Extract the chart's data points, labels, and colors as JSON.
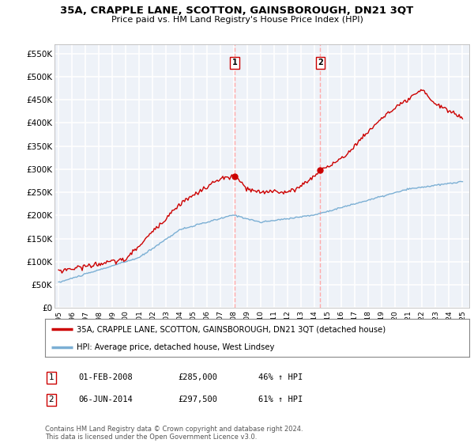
{
  "title": "35A, CRAPPLE LANE, SCOTTON, GAINSBOROUGH, DN21 3QT",
  "subtitle": "Price paid vs. HM Land Registry's House Price Index (HPI)",
  "ylim": [
    0,
    570000
  ],
  "yticks": [
    0,
    50000,
    100000,
    150000,
    200000,
    250000,
    300000,
    350000,
    400000,
    450000,
    500000,
    550000
  ],
  "ytick_labels": [
    "£0",
    "£50K",
    "£100K",
    "£150K",
    "£200K",
    "£250K",
    "£300K",
    "£350K",
    "£400K",
    "£450K",
    "£500K",
    "£550K"
  ],
  "background_color": "#eef2f8",
  "grid_color": "#ffffff",
  "sale1_date_x": 2008.08,
  "sale1_price": 285000,
  "sale2_date_x": 2014.43,
  "sale2_price": 297500,
  "legend_line1": "35A, CRAPPLE LANE, SCOTTON, GAINSBOROUGH, DN21 3QT (detached house)",
  "legend_line2": "HPI: Average price, detached house, West Lindsey",
  "table_row1": [
    "1",
    "01-FEB-2008",
    "£285,000",
    "46% ↑ HPI"
  ],
  "table_row2": [
    "2",
    "06-JUN-2014",
    "£297,500",
    "61% ↑ HPI"
  ],
  "footer": "Contains HM Land Registry data © Crown copyright and database right 2024.\nThis data is licensed under the Open Government Licence v3.0.",
  "red_color": "#cc0000",
  "blue_color": "#7bafd4",
  "vline_color": "#ffaaaa",
  "xlim_left": 1994.7,
  "xlim_right": 2025.5
}
